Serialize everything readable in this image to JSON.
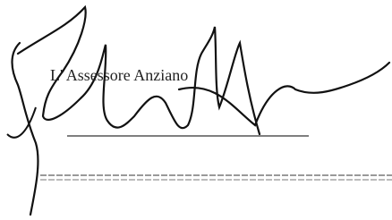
{
  "signatory": {
    "title": "L' Assessore Anziano"
  }
}
